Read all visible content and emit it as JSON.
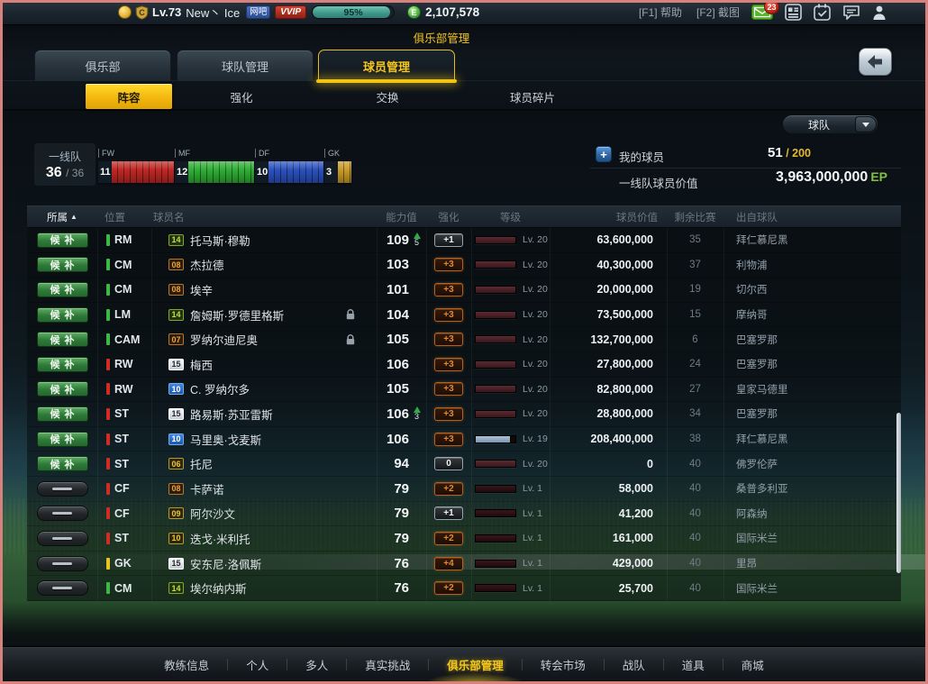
{
  "topbar": {
    "level": "Lv.73",
    "username": "New丶 Ice",
    "wangba_badge": "网吧",
    "vip_badge": "VVIP",
    "exp_percent": "95%",
    "exp_fill": 95,
    "currency": "2,107,578",
    "help": "[F1] 帮助",
    "screenshot": "[F2] 截图",
    "mail_count": "23"
  },
  "header": {
    "page_title": "俱乐部管理",
    "tabs": [
      {
        "label": "俱乐部",
        "active": false
      },
      {
        "label": "球队管理",
        "active": false
      },
      {
        "label": "球员管理",
        "active": true
      }
    ],
    "subtabs": [
      {
        "label": "阵容",
        "active": true
      },
      {
        "label": "强化",
        "active": false
      },
      {
        "label": "交换",
        "active": false
      },
      {
        "label": "球员碎片",
        "active": false
      }
    ]
  },
  "toolbar": {
    "team_dropdown": "球队"
  },
  "icons": {
    "plus": "+",
    "sort_asc": "▲",
    "dropdown_arrow": "▼",
    "back_arrow": "◀",
    "ep_letter": "E"
  },
  "squad": {
    "first_team_label": "一线队",
    "count": "36",
    "total": "/ 36",
    "formation": [
      {
        "label": "FW",
        "count": "11",
        "color": "red"
      },
      {
        "label": "MF",
        "count": "12",
        "color": "green"
      },
      {
        "label": "DF",
        "count": "10",
        "color": "blue"
      },
      {
        "label": "GK",
        "count": "3",
        "color": "gold"
      }
    ],
    "my_players_label": "我的球员",
    "my_players_count": "51",
    "my_players_max": " / 200",
    "value_label": "一线队球员价值",
    "value": "3,963,000,000",
    "value_unit": "EP"
  },
  "table": {
    "sort_icon": "▲",
    "headers": [
      "所属",
      "位置",
      "球员名",
      "能力值",
      "强化",
      "等级",
      "球员价值",
      "剩余比赛",
      "出自球队"
    ],
    "rows": [
      {
        "status": "候补",
        "pos": "RM",
        "pos_color": "green",
        "season": "14",
        "season_style": "green",
        "name": "托马斯·穆勒",
        "lock": false,
        "ability": "109",
        "gain": "5",
        "enhance": "+1",
        "enhance_style": "grey",
        "level": "Lv. 20",
        "level_fill": 100,
        "level_tone": "dark",
        "value": "63,600,000",
        "remain": "35",
        "club": "拜仁慕尼黑"
      },
      {
        "status": "候补",
        "pos": "CM",
        "pos_color": "green",
        "season": "08",
        "season_style": "orange",
        "name": "杰拉德",
        "lock": false,
        "ability": "103",
        "gain": null,
        "enhance": "+3",
        "enhance_style": "orange",
        "level": "Lv. 20",
        "level_fill": 100,
        "level_tone": "dark",
        "value": "40,300,000",
        "remain": "37",
        "club": "利物浦"
      },
      {
        "status": "候补",
        "pos": "CM",
        "pos_color": "green",
        "season": "08",
        "season_style": "orange",
        "name": "埃辛",
        "lock": false,
        "ability": "101",
        "gain": null,
        "enhance": "+3",
        "enhance_style": "orange",
        "level": "Lv. 20",
        "level_fill": 100,
        "level_tone": "dark",
        "value": "20,000,000",
        "remain": "19",
        "club": "切尔西"
      },
      {
        "status": "候补",
        "pos": "LM",
        "pos_color": "green",
        "season": "14",
        "season_style": "green",
        "name": "詹姆斯·罗德里格斯",
        "lock": true,
        "ability": "104",
        "gain": null,
        "enhance": "+3",
        "enhance_style": "orange",
        "level": "Lv. 20",
        "level_fill": 100,
        "level_tone": "dark",
        "value": "73,500,000",
        "remain": "15",
        "club": "摩纳哥"
      },
      {
        "status": "候补",
        "pos": "CAM",
        "pos_color": "green",
        "season": "07",
        "season_style": "orange",
        "name": "罗纳尔迪尼奥",
        "lock": true,
        "ability": "105",
        "gain": null,
        "enhance": "+3",
        "enhance_style": "orange",
        "level": "Lv. 20",
        "level_fill": 100,
        "level_tone": "dark",
        "value": "132,700,000",
        "remain": "6",
        "club": "巴塞罗那"
      },
      {
        "status": "候补",
        "pos": "RW",
        "pos_color": "red",
        "season": "15",
        "season_style": "silver",
        "name": "梅西",
        "lock": false,
        "ability": "106",
        "gain": null,
        "enhance": "+3",
        "enhance_style": "orange",
        "level": "Lv. 20",
        "level_fill": 100,
        "level_tone": "dark",
        "value": "27,800,000",
        "remain": "24",
        "club": "巴塞罗那"
      },
      {
        "status": "候补",
        "pos": "RW",
        "pos_color": "red",
        "season": "10",
        "season_style": "blue",
        "name": "C. 罗纳尔多",
        "lock": false,
        "ability": "105",
        "gain": null,
        "enhance": "+3",
        "enhance_style": "orange",
        "level": "Lv. 20",
        "level_fill": 100,
        "level_tone": "dark",
        "value": "82,800,000",
        "remain": "27",
        "club": "皇家马德里"
      },
      {
        "status": "候补",
        "pos": "ST",
        "pos_color": "red",
        "season": "15",
        "season_style": "silver",
        "name": "路易斯·苏亚雷斯",
        "lock": false,
        "ability": "106",
        "gain": "3",
        "enhance": "+3",
        "enhance_style": "orange",
        "level": "Lv. 20",
        "level_fill": 100,
        "level_tone": "dark",
        "value": "28,800,000",
        "remain": "34",
        "club": "巴塞罗那"
      },
      {
        "status": "候补",
        "pos": "ST",
        "pos_color": "red",
        "season": "10",
        "season_style": "blue",
        "name": "马里奥·戈麦斯",
        "lock": false,
        "ability": "106",
        "gain": null,
        "enhance": "+3",
        "enhance_style": "orange",
        "level": "Lv. 19",
        "level_fill": 86,
        "level_tone": "blue",
        "value": "208,400,000",
        "remain": "38",
        "club": "拜仁慕尼黑"
      },
      {
        "status": "候补",
        "pos": "ST",
        "pos_color": "red",
        "season": "06",
        "season_style": "gold",
        "name": "托尼",
        "lock": false,
        "ability": "94",
        "gain": null,
        "enhance": "0",
        "enhance_style": "grey",
        "level": "Lv. 20",
        "level_fill": 100,
        "level_tone": "dark",
        "value": "0",
        "remain": "40",
        "club": "佛罗伦萨"
      },
      {
        "status": "",
        "pos": "CF",
        "pos_color": "red",
        "season": "08",
        "season_style": "orange",
        "name": "卡萨诺",
        "lock": false,
        "ability": "79",
        "gain": null,
        "enhance": "+2",
        "enhance_style": "orange",
        "level": "Lv. 1",
        "level_fill": 100,
        "level_tone": "dark1",
        "value": "58,000",
        "remain": "40",
        "club": "桑普多利亚"
      },
      {
        "status": "",
        "pos": "CF",
        "pos_color": "red",
        "season": "09",
        "season_style": "gold",
        "name": "阿尔沙文",
        "lock": false,
        "ability": "79",
        "gain": null,
        "enhance": "+1",
        "enhance_style": "grey",
        "level": "Lv. 1",
        "level_fill": 100,
        "level_tone": "dark1",
        "value": "41,200",
        "remain": "40",
        "club": "阿森纳"
      },
      {
        "status": "",
        "pos": "ST",
        "pos_color": "red",
        "season": "10",
        "season_style": "gold",
        "name": "迭戈·米利托",
        "lock": false,
        "ability": "79",
        "gain": null,
        "enhance": "+2",
        "enhance_style": "orange",
        "level": "Lv. 1",
        "level_fill": 100,
        "level_tone": "dark1",
        "value": "161,000",
        "remain": "40",
        "club": "国际米兰"
      },
      {
        "status": "",
        "pos": "GK",
        "pos_color": "gold",
        "season": "15",
        "season_style": "silver",
        "name": "安东尼·洛佩斯",
        "lock": false,
        "ability": "76",
        "gain": null,
        "enhance": "+4",
        "enhance_style": "orange",
        "level": "Lv. 1",
        "level_fill": 100,
        "level_tone": "dark1",
        "value": "429,000",
        "remain": "40",
        "club": "里昂"
      },
      {
        "status": "",
        "pos": "CM",
        "pos_color": "green",
        "season": "14",
        "season_style": "green",
        "name": "埃尔纳内斯",
        "lock": false,
        "ability": "76",
        "gain": null,
        "enhance": "+2",
        "enhance_style": "orange",
        "level": "Lv. 1",
        "level_fill": 100,
        "level_tone": "dark1",
        "value": "25,700",
        "remain": "40",
        "club": "国际米兰"
      }
    ]
  },
  "bottom_nav": {
    "items": [
      "教练信息",
      "个人",
      "多人",
      "真实挑战",
      "俱乐部管理",
      "转会市场",
      "战队",
      "道具",
      "商城"
    ],
    "active": "俱乐部管理"
  }
}
